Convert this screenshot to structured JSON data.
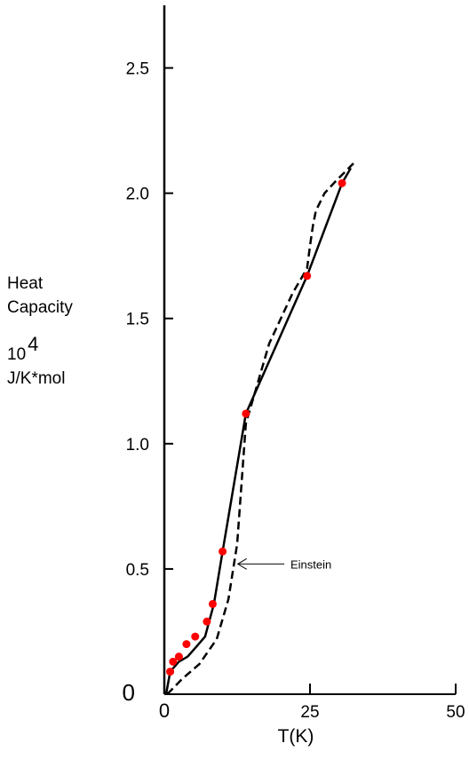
{
  "chart_data": {
    "type": "line",
    "xlabel": "T(K)",
    "ylabel_lines": [
      "Heat",
      "Capacity",
      "10",
      "J/K*mol"
    ],
    "ylabel_exponent": "4",
    "x_ticks": [
      {
        "value": 0,
        "label": "0"
      },
      {
        "value": 25,
        "label": "25"
      },
      {
        "value": 50,
        "label": "50"
      }
    ],
    "y_ticks": [
      {
        "value": 0,
        "label": "0"
      },
      {
        "value": 0.5,
        "label": "0.5"
      },
      {
        "value": 1.0,
        "label": "1.0"
      },
      {
        "value": 1.5,
        "label": "1.5"
      },
      {
        "value": 2.0,
        "label": "2.0"
      },
      {
        "value": 2.5,
        "label": "2.5"
      }
    ],
    "xlim": [
      0,
      50
    ],
    "ylim": [
      0,
      2.75
    ],
    "grid": false,
    "series": [
      {
        "style": "solid-with-markers",
        "x": [
          0.3,
          1.0,
          2.5,
          4.0,
          5.5,
          7.0,
          8.5,
          10.0,
          14.0,
          24.5,
          30.5,
          32.0
        ],
        "y": [
          0.0,
          0.09,
          0.13,
          0.15,
          0.19,
          0.23,
          0.36,
          0.57,
          1.12,
          1.67,
          2.04,
          2.1
        ],
        "markers": [
          [
            1.0,
            0.09
          ],
          [
            1.5,
            0.13
          ],
          [
            2.5,
            0.15
          ],
          [
            3.8,
            0.2
          ],
          [
            5.3,
            0.23
          ],
          [
            7.3,
            0.29
          ],
          [
            8.3,
            0.36
          ],
          [
            10.0,
            0.57
          ],
          [
            14.0,
            1.12
          ],
          [
            24.5,
            1.67
          ],
          [
            30.5,
            2.04
          ]
        ],
        "marker_color": "#ff0000"
      },
      {
        "name": "Einstein",
        "style": "dashed",
        "x": [
          0.5,
          3.0,
          6.0,
          9.0,
          11.0,
          12.5,
          14.0,
          18.0,
          22.0,
          24.5,
          25.0,
          25.5,
          26.0,
          27.5,
          29.5,
          32.5
        ],
        "y": [
          0.0,
          0.06,
          0.12,
          0.22,
          0.38,
          0.6,
          1.08,
          1.4,
          1.6,
          1.7,
          1.79,
          1.87,
          1.93,
          2.0,
          2.05,
          2.12
        ]
      }
    ],
    "annotations": [
      {
        "text": "Einstein",
        "arrow_to": [
          12.3,
          0.52
        ]
      }
    ]
  }
}
